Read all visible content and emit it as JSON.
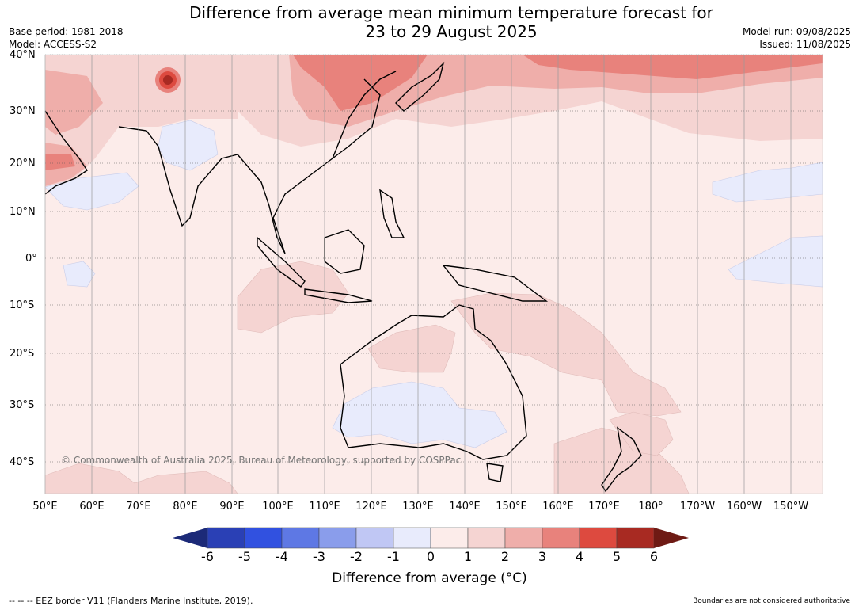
{
  "title_line1": "Difference from average mean minimum temperature forecast for",
  "title_line2": "23 to 29 August 2025",
  "base_period": "Base period: 1981-2018",
  "model": "Model: ACCESS-S2",
  "model_run": "Model run: 09/08/2025",
  "issued": "Issued: 11/08/2025",
  "lat_labels": [
    "40°N",
    "30°N",
    "20°N",
    "10°N",
    "0°",
    "10°S",
    "20°S",
    "30°S",
    "40°S"
  ],
  "lon_labels": [
    "50°E",
    "60°E",
    "70°E",
    "80°E",
    "90°E",
    "100°E",
    "110°E",
    "120°E",
    "130°E",
    "140°E",
    "150°E",
    "160°E",
    "170°E",
    "180°",
    "170°W",
    "160°W",
    "150°W"
  ],
  "colorbar": {
    "ticks": [
      "-6",
      "-5",
      "-4",
      "-3",
      "-2",
      "-1",
      "0",
      "1",
      "2",
      "3",
      "4",
      "5",
      "6"
    ],
    "colors": [
      "#1c2a78",
      "#2a40b5",
      "#3151e0",
      "#5e78e4",
      "#8a9deb",
      "#c0c7f4",
      "#e8ebfc",
      "#fcecea",
      "#f5d4d2",
      "#efaeaa",
      "#e8827c",
      "#dd4a3f",
      "#a82a22",
      "#6e1a14"
    ],
    "title": "Difference from average (°C)"
  },
  "copyright": "© Commonwealth of Australia 2025, Bureau of Meteorology, supported by COSPPac",
  "footer_left": "--  --  -- EEZ border V11 (Flanders Marine Institute, 2019).",
  "footer_right": "Boundaries are not considered authoritative"
}
